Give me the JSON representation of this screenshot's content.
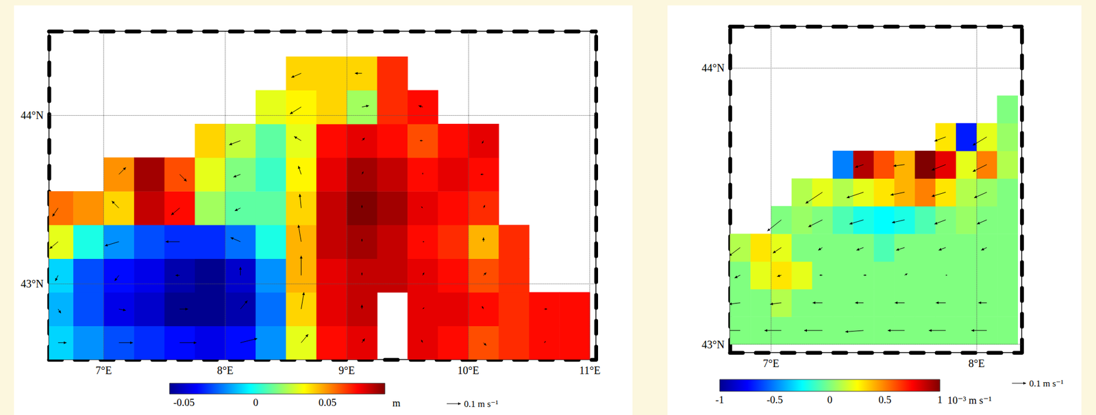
{
  "chart_data": [
    {
      "type": "field_map",
      "xlim": [
        6.55,
        11.05
      ],
      "ylim": [
        42.55,
        44.5
      ],
      "xticks": [
        {
          "value": 7,
          "label": "7°E"
        },
        {
          "value": 8,
          "label": "8°E"
        },
        {
          "value": 9,
          "label": "9°E"
        },
        {
          "value": 10,
          "label": "10°E"
        },
        {
          "value": 11,
          "label": "11°E"
        }
      ],
      "yticks": [
        {
          "value": 43,
          "label": "43°N"
        },
        {
          "value": 44,
          "label": "44°N"
        }
      ],
      "grid": true,
      "field": {
        "lon": [
          6.625,
          6.875,
          7.125,
          7.375,
          7.625,
          7.875,
          8.125,
          8.375,
          8.625,
          8.875,
          9.125,
          9.375,
          9.625,
          9.875,
          10.125,
          10.375,
          10.625,
          10.875
        ],
        "lat": [
          42.65,
          42.85,
          43.05,
          43.25,
          43.45,
          43.65,
          43.85,
          44.05,
          44.25
        ],
        "values": [
          [
            -0.01,
            -0.02,
            -0.03,
            -0.035,
            -0.04,
            -0.045,
            -0.04,
            -0.02,
            0.03,
            0.07,
            0.075,
            null,
            0.075,
            0.07,
            0.06,
            0.065,
            0.07,
            0.07
          ],
          [
            -0.015,
            -0.03,
            -0.045,
            -0.05,
            -0.06,
            -0.065,
            -0.055,
            -0.025,
            0.04,
            0.075,
            0.08,
            null,
            0.075,
            0.075,
            0.07,
            0.065,
            0.07,
            0.07
          ],
          [
            -0.01,
            -0.03,
            -0.04,
            -0.045,
            -0.055,
            -0.06,
            -0.05,
            -0.02,
            0.045,
            0.075,
            0.08,
            0.08,
            0.075,
            0.07,
            0.06,
            0.065,
            null,
            null
          ],
          [
            0.03,
            0,
            -0.02,
            -0.03,
            -0.035,
            -0.035,
            -0.025,
            0,
            0.045,
            0.08,
            0.085,
            0.08,
            0.07,
            0.065,
            0.045,
            0.065,
            null,
            null
          ],
          [
            0.055,
            0.05,
            0.04,
            0.08,
            0.07,
            0.02,
            0.01,
            0.01,
            0.04,
            0.08,
            0.09,
            0.085,
            0.075,
            0.07,
            0.065,
            null,
            null,
            null
          ],
          [
            null,
            null,
            0.05,
            0.085,
            0.06,
            0.03,
            0.015,
            0.005,
            0.035,
            0.075,
            0.085,
            0.08,
            0.07,
            0.075,
            0.07,
            null,
            null,
            null
          ],
          [
            null,
            null,
            null,
            null,
            null,
            0.04,
            0.025,
            0.01,
            0.03,
            0.07,
            0.075,
            0.07,
            0.06,
            0.07,
            0.075,
            null,
            null,
            null
          ],
          [
            null,
            null,
            null,
            null,
            null,
            null,
            null,
            0.03,
            0.035,
            0.04,
            0.02,
            0.065,
            0.07,
            null,
            null,
            null,
            null,
            null
          ],
          [
            null,
            null,
            null,
            null,
            null,
            null,
            null,
            null,
            0.04,
            0.04,
            0.04,
            0.065,
            null,
            null,
            null,
            null,
            null,
            null
          ]
        ]
      },
      "colorbar": {
        "range": [
          -0.06,
          0.09
        ],
        "ticks": [
          -0.05,
          0,
          0.05
        ],
        "label": "m"
      },
      "vectors": {
        "lon": [
          6.625,
          7.125,
          7.625,
          8.125,
          8.625,
          9.125,
          9.625,
          10.125,
          10.625
        ],
        "lat": [
          42.65,
          42.85,
          43.05,
          43.25,
          43.45,
          43.65,
          43.85,
          44.05,
          44.25
        ],
        "u": [
          [
            0.06,
            0.1,
            0.12,
            0.12,
            0.05,
            0.02,
            -0.01,
            0.02,
            0.01
          ],
          [
            0.02,
            0.05,
            0.06,
            0.05,
            0.02,
            0,
            0.01,
            -0.01,
            0.02
          ],
          [
            -0.02,
            -0.03,
            -0.03,
            0,
            0,
            0,
            0.01,
            0.02,
            null
          ],
          [
            -0.06,
            -0.1,
            -0.1,
            -0.07,
            -0.02,
            0,
            0.01,
            0,
            null
          ],
          [
            -0.04,
            -0.05,
            -0.06,
            -0.04,
            -0.01,
            0,
            -0.01,
            0.01,
            null
          ],
          [
            null,
            0.05,
            0.05,
            -0.05,
            -0.02,
            0.01,
            0,
            -0.02,
            null
          ],
          [
            null,
            null,
            null,
            -0.08,
            -0.05,
            0.02,
            -0.02,
            -0.01,
            null
          ],
          [
            null,
            null,
            null,
            null,
            -0.08,
            0.05,
            -0.03,
            null,
            null
          ],
          [
            null,
            null,
            null,
            null,
            -0.07,
            -0.05,
            null,
            null,
            null
          ]
        ],
        "v": [
          [
            0,
            0,
            0,
            0.03,
            0.06,
            0.03,
            0.02,
            -0.02,
            0.01
          ],
          [
            -0.03,
            -0.01,
            0,
            0.06,
            0.12,
            0.03,
            0.01,
            0.02,
            0
          ],
          [
            -0.04,
            -0.04,
            0,
            0.06,
            0.14,
            0.02,
            0.02,
            0.02,
            null
          ],
          [
            -0.05,
            -0.03,
            0,
            0.03,
            0.12,
            0.02,
            0,
            0.03,
            null
          ],
          [
            -0.06,
            0.05,
            -0.05,
            -0.02,
            0.1,
            0.02,
            0.01,
            0.02,
            null
          ],
          [
            null,
            0.05,
            -0.05,
            -0.02,
            0.06,
            0.02,
            0.01,
            0,
            null
          ],
          [
            null,
            null,
            null,
            -0.03,
            0.03,
            0.02,
            0,
            -0.02,
            null
          ],
          [
            null,
            null,
            null,
            null,
            -0.05,
            0.01,
            0.01,
            null,
            null
          ],
          [
            null,
            null,
            null,
            null,
            -0.03,
            0,
            null,
            null,
            null
          ]
        ],
        "reference": 0.1,
        "reference_label": "0.1 m s⁻¹"
      }
    },
    {
      "type": "field_map",
      "xlim": [
        6.8,
        8.22
      ],
      "ylim": [
        42.97,
        44.15
      ],
      "xticks": [
        {
          "value": 7,
          "label": "7°E"
        },
        {
          "value": 8,
          "label": "8°E"
        }
      ],
      "yticks": [
        {
          "value": 43,
          "label": "43°N"
        },
        {
          "value": 44,
          "label": "44°N"
        }
      ],
      "grid": true,
      "field": {
        "lon": [
          6.85,
          6.95,
          7.05,
          7.15,
          7.25,
          7.35,
          7.45,
          7.55,
          7.65,
          7.75,
          7.85,
          7.95,
          8.05,
          8.15
        ],
        "lat": [
          43.05,
          43.15,
          43.25,
          43.35,
          43.45,
          43.55,
          43.65,
          43.75,
          43.85
        ],
        "values": [
          [
            0,
            0,
            0,
            0,
            0,
            0,
            0,
            0,
            0,
            0,
            0,
            0,
            0,
            0
          ],
          [
            0,
            0,
            0.1,
            0,
            0,
            0,
            0,
            0,
            0,
            0,
            0,
            0,
            0,
            0
          ],
          [
            0,
            0.2,
            0.3,
            0.2,
            0,
            0,
            0,
            0,
            0,
            0,
            0,
            0,
            0,
            0
          ],
          [
            0.1,
            0.3,
            0.2,
            0,
            0,
            0,
            0,
            -0.1,
            0,
            0,
            0,
            0,
            0,
            0
          ],
          [
            null,
            null,
            0,
            0.05,
            0,
            -0.1,
            -0.2,
            -0.25,
            -0.2,
            -0.1,
            0,
            0.05,
            0,
            0
          ],
          [
            null,
            null,
            null,
            0.1,
            0.2,
            0.1,
            0.2,
            0.3,
            0.4,
            0.5,
            0.3,
            0.1,
            0.05,
            0
          ],
          [
            null,
            null,
            null,
            null,
            null,
            -0.5,
            0.9,
            0.6,
            0.4,
            1,
            0.8,
            0.2,
            0.5,
            0.1
          ],
          [
            null,
            null,
            null,
            null,
            null,
            null,
            null,
            null,
            null,
            null,
            0.3,
            -0.7,
            0.2,
            0.05
          ],
          [
            null,
            null,
            null,
            null,
            null,
            null,
            null,
            null,
            null,
            null,
            null,
            null,
            null,
            0
          ]
        ]
      },
      "colorbar": {
        "range": [
          -1,
          1
        ],
        "ticks": [
          -1,
          -0.5,
          0,
          0.5,
          1
        ],
        "label": "10⁻³ m s⁻¹"
      },
      "vectors": {
        "lon": [
          6.85,
          7.05,
          7.25,
          7.45,
          7.65,
          7.85,
          8.05
        ],
        "lat": [
          43.05,
          43.15,
          43.25,
          43.35,
          43.45,
          43.55,
          43.65,
          43.75
        ],
        "u": [
          [
            -0.12,
            -0.12,
            -0.13,
            -0.13,
            -0.12,
            -0.12,
            -0.11
          ],
          [
            -0.08,
            -0.08,
            -0.07,
            -0.06,
            -0.07,
            -0.07,
            -0.06
          ],
          [
            -0.04,
            -0.03,
            -0.02,
            0.02,
            0.02,
            0.01,
            0
          ],
          [
            -0.08,
            -0.06,
            -0.03,
            -0.05,
            -0.06,
            -0.05,
            -0.04
          ],
          [
            null,
            -0.1,
            -0.1,
            -0.1,
            -0.09,
            -0.08,
            -0.07
          ],
          [
            null,
            null,
            -0.12,
            -0.12,
            -0.1,
            -0.1,
            -0.09
          ],
          [
            null,
            null,
            null,
            -0.06,
            -0.08,
            -0.1,
            -0.1
          ],
          [
            null,
            null,
            null,
            null,
            null,
            -0.08,
            -0.1
          ]
        ],
        "v": [
          [
            0,
            0,
            0,
            -0.01,
            0,
            0,
            0
          ],
          [
            -0.01,
            -0.01,
            0,
            0,
            0,
            0,
            0
          ],
          [
            -0.02,
            -0.01,
            0,
            0,
            0.01,
            0,
            0
          ],
          [
            -0.06,
            -0.04,
            -0.02,
            -0.02,
            -0.02,
            -0.02,
            -0.02
          ],
          [
            null,
            -0.08,
            -0.05,
            -0.03,
            -0.02,
            -0.03,
            -0.03
          ],
          [
            null,
            null,
            -0.08,
            -0.04,
            -0.02,
            -0.03,
            -0.04
          ],
          [
            null,
            null,
            null,
            -0.02,
            -0.01,
            -0.04,
            -0.05
          ],
          [
            null,
            null,
            null,
            null,
            null,
            -0.03,
            -0.06
          ]
        ],
        "reference": 0.1,
        "reference_label": "0.1 m s⁻¹"
      }
    }
  ]
}
